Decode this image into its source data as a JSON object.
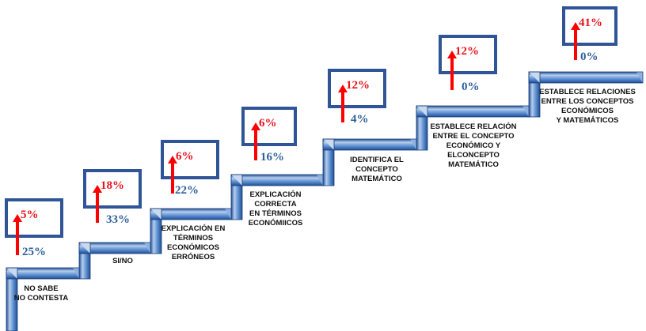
{
  "colors": {
    "stair_light": "#b8cdea",
    "stair_mid": "#5b8ed4",
    "stair_dark": "#1f4e96",
    "box_border": "#2f5597",
    "arrow": "#ff0000",
    "blue_text": "#2e5f9c",
    "red_text": "#e8131b"
  },
  "steps": [
    {
      "label": [
        "NO SABE",
        "NO CONTESTA"
      ],
      "blue_value": "25%",
      "red_value": "5%"
    },
    {
      "label": [
        "SI/NO"
      ],
      "blue_value": "33%",
      "red_value": "18%"
    },
    {
      "label": [
        "EXPLICACIÓN EN",
        "TÉRMINOS",
        "ECONÓMICOS",
        "ERRÓNEOS"
      ],
      "blue_value": "22%",
      "red_value": "6%"
    },
    {
      "label": [
        "EXPLICACIÓN",
        "CORRECTA",
        "EN TÉRMINOS",
        "ECONÓMIICOS"
      ],
      "blue_value": "16%",
      "red_value": "6%"
    },
    {
      "label": [
        "IDENTIFICA EL",
        "CONCEPTO",
        "MATEMÁTICO"
      ],
      "blue_value": "4%",
      "red_value": "12%"
    },
    {
      "label": [
        "ESTABLECE RELACIÓN",
        "ENTRE EL CONCEPTO",
        "ECONÓMICO Y",
        "ELCONCEPTO",
        "MATEMÁTICO"
      ],
      "blue_value": "0%",
      "red_value": "12%"
    },
    {
      "label": [
        "ESTABLECE RELACIONES",
        "ENTRE LOS CONCEPTOS",
        "ECONÓMICOS",
        "Y  MATEMÁTICOS"
      ],
      "blue_value": "0%",
      "red_value": "41%"
    }
  ]
}
